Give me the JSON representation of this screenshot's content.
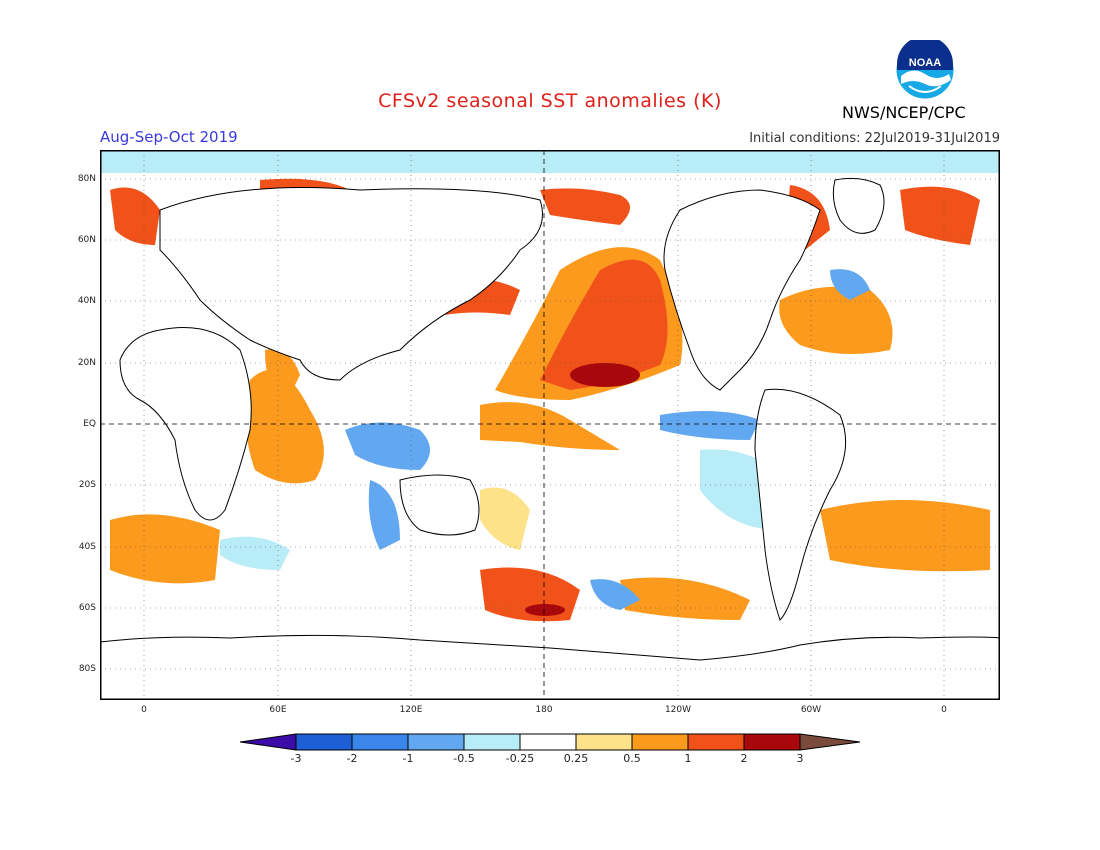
{
  "header": {
    "title": "CFSv2 seasonal SST anomalies (K)",
    "period": "Aug-Sep-Oct 2019",
    "initial_conditions": "Initial conditions: 22Jul2019-31Jul2019",
    "agency": "NWS/NCEP/CPC",
    "logo_text": "NOAA"
  },
  "axes": {
    "lat_labels": [
      "80N",
      "60N",
      "40N",
      "20N",
      "EQ",
      "20S",
      "40S",
      "60S",
      "80S"
    ],
    "lon_labels": [
      "0",
      "60E",
      "120E",
      "180",
      "120W",
      "60W",
      "0"
    ]
  },
  "colorbar": {
    "labels": [
      "-3",
      "-2",
      "-1",
      "-0.5",
      "-0.25",
      "0.25",
      "0.5",
      "1",
      "2",
      "3"
    ],
    "colors": [
      "#3b0ca8",
      "#1f5fd6",
      "#3a86ea",
      "#62a8f0",
      "#b8ecf6",
      "#ffffff",
      "#fde28a",
      "#fb9a1c",
      "#f1521a",
      "#d3150e",
      "#a8070b",
      "#7a4a3a"
    ]
  },
  "map_colors": {
    "land": "#ffffff",
    "warm_weak": "#fde28a",
    "warm_mod": "#fb9a1c",
    "warm_strong": "#f1521a",
    "warm_vstrong": "#d3150e",
    "warm_extreme": "#a8070b",
    "cool_weak": "#b8ecf6",
    "cool_mod": "#62a8f0",
    "cool_strong": "#3a86ea"
  }
}
